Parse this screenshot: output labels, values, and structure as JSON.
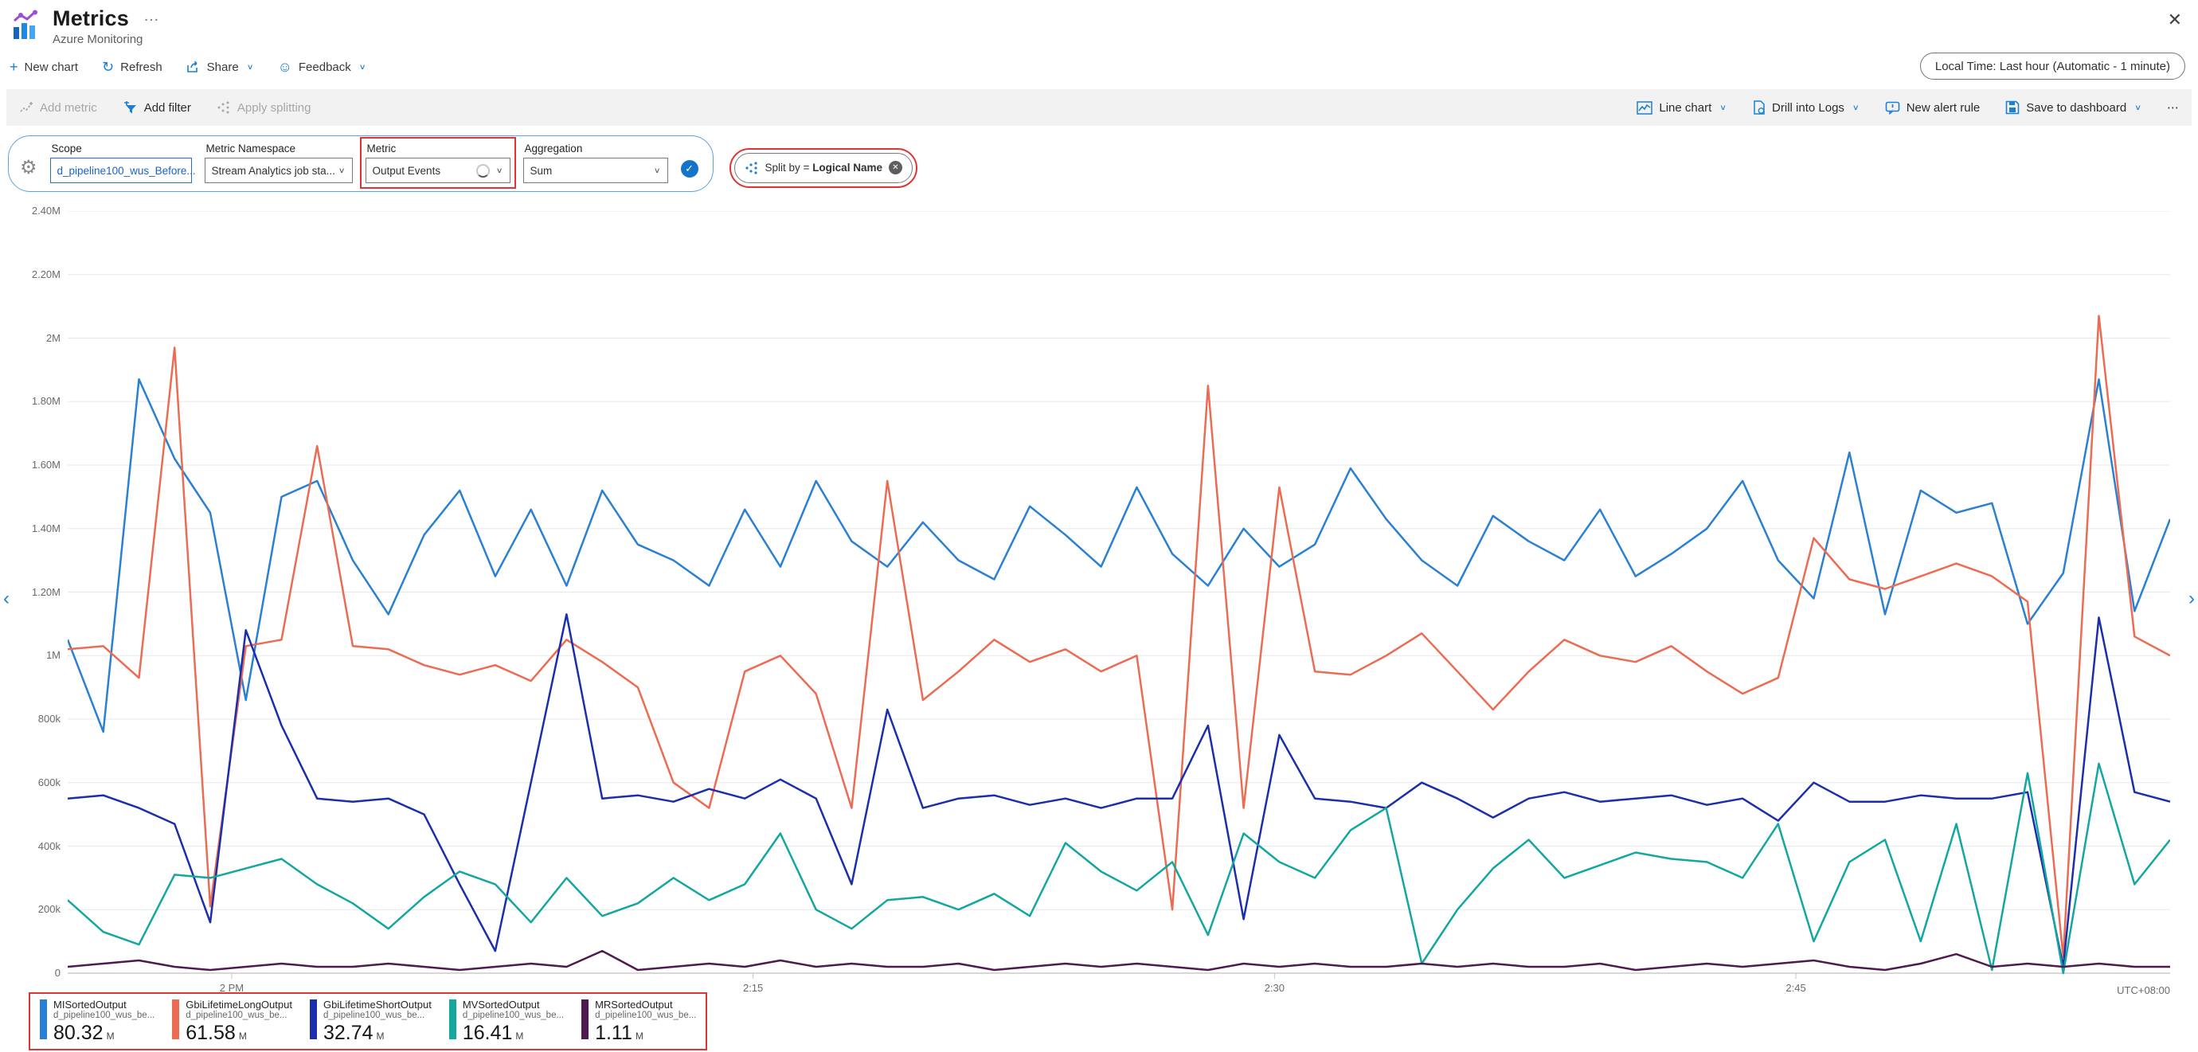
{
  "header": {
    "title": "Metrics",
    "subtitle": "Azure Monitoring",
    "ellipsis": "…",
    "close_glyph": "✕"
  },
  "toolbar": {
    "new_chart": "New chart",
    "refresh": "Refresh",
    "share": "Share",
    "feedback": "Feedback",
    "time_range": "Local Time: Last hour (Automatic - 1 minute)"
  },
  "commandbar": {
    "add_metric": "Add metric",
    "add_filter": "Add filter",
    "apply_splitting": "Apply splitting",
    "line_chart": "Line chart",
    "drill_into_logs": "Drill into Logs",
    "new_alert_rule": "New alert rule",
    "save_to_dashboard": "Save to dashboard",
    "more": "⋯"
  },
  "metric_config": {
    "scope_label": "Scope",
    "scope_value": "d_pipeline100_wus_Before...",
    "namespace_label": "Metric Namespace",
    "namespace_value": "Stream Analytics job sta...",
    "metric_label": "Metric",
    "metric_value": "Output Events",
    "aggregation_label": "Aggregation",
    "aggregation_value": "Sum",
    "split_by_prefix": "Split by =",
    "split_by_value": "Logical Name"
  },
  "icons": {
    "plus": "+",
    "refresh": "↻",
    "feedback": "☺",
    "chevron_down": "∨",
    "gear": "⚙",
    "check": "✓",
    "remove": "✕",
    "prev": "‹",
    "next": "›"
  },
  "chart_data": {
    "type": "line",
    "title": "",
    "xlabel": "",
    "ylabel": "",
    "time_span": "1:55 PM - 2:55 PM (1 minute granularity)",
    "grid": true,
    "legend_position": "bottom-left",
    "y_axis": {
      "min": 0,
      "max": 2400000,
      "ticks": [
        {
          "label": "2.40M",
          "value": 2.4
        },
        {
          "label": "2.20M",
          "value": 2.2
        },
        {
          "label": "2M",
          "value": 2.0
        },
        {
          "label": "1.80M",
          "value": 1.8
        },
        {
          "label": "1.60M",
          "value": 1.6
        },
        {
          "label": "1.40M",
          "value": 1.4
        },
        {
          "label": "1.20M",
          "value": 1.2
        },
        {
          "label": "1M",
          "value": 1.0
        },
        {
          "label": "800k",
          "value": 0.8
        },
        {
          "label": "600k",
          "value": 0.6
        },
        {
          "label": "400k",
          "value": 0.4
        },
        {
          "label": "200k",
          "value": 0.2
        },
        {
          "label": "0",
          "value": 0.0
        }
      ]
    },
    "x_axis": {
      "ticks": [
        {
          "label": "2 PM",
          "pos": 0.078
        },
        {
          "label": "2:15",
          "pos": 0.326
        },
        {
          "label": "2:30",
          "pos": 0.574
        },
        {
          "label": "2:45",
          "pos": 0.822
        }
      ],
      "note": "UTC+08:00"
    },
    "values_unit": "millions of events per minute",
    "series": [
      {
        "name": "MISortedOutput",
        "scope": "d_pipeline100_wus_be...",
        "total": "80.32",
        "unit": "M",
        "color": "#2a80d2",
        "values": [
          1.05,
          0.76,
          1.87,
          1.62,
          1.45,
          0.86,
          1.5,
          1.55,
          1.3,
          1.13,
          1.38,
          1.52,
          1.25,
          1.46,
          1.22,
          1.52,
          1.35,
          1.3,
          1.22,
          1.46,
          1.28,
          1.55,
          1.36,
          1.28,
          1.42,
          1.3,
          1.24,
          1.47,
          1.38,
          1.28,
          1.53,
          1.32,
          1.22,
          1.4,
          1.28,
          1.35,
          1.59,
          1.43,
          1.3,
          1.22,
          1.44,
          1.36,
          1.3,
          1.46,
          1.25,
          1.32,
          1.4,
          1.55,
          1.3,
          1.18,
          1.64,
          1.13,
          1.52,
          1.45,
          1.48,
          1.1,
          1.26,
          1.87,
          1.14,
          1.43
        ]
      },
      {
        "name": "GbiLifetimeLongOutput",
        "scope": "d_pipeline100_wus_be...",
        "total": "61.58",
        "unit": "M",
        "color": "#ec6c53",
        "values": [
          1.02,
          1.03,
          0.93,
          1.97,
          0.21,
          1.03,
          1.05,
          1.66,
          1.03,
          1.02,
          0.97,
          0.94,
          0.97,
          0.92,
          1.05,
          0.98,
          0.9,
          0.6,
          0.52,
          0.95,
          1.0,
          0.88,
          0.52,
          1.55,
          0.86,
          0.95,
          1.05,
          0.98,
          1.02,
          0.95,
          1.0,
          0.2,
          1.85,
          0.52,
          1.53,
          0.95,
          0.94,
          1.0,
          1.07,
          0.95,
          0.83,
          0.95,
          1.05,
          1.0,
          0.98,
          1.03,
          0.95,
          0.88,
          0.93,
          1.37,
          1.24,
          1.21,
          1.25,
          1.29,
          1.25,
          1.17,
          0.05,
          2.07,
          1.06,
          1.0
        ]
      },
      {
        "name": "GbiLifetimeShortOutput",
        "scope": "d_pipeline100_wus_be...",
        "total": "32.74",
        "unit": "M",
        "color": "#1b2eab",
        "values": [
          0.55,
          0.56,
          0.52,
          0.47,
          0.16,
          1.08,
          0.78,
          0.55,
          0.54,
          0.55,
          0.5,
          0.28,
          0.07,
          0.6,
          1.13,
          0.55,
          0.56,
          0.54,
          0.58,
          0.55,
          0.61,
          0.55,
          0.28,
          0.83,
          0.52,
          0.55,
          0.56,
          0.53,
          0.55,
          0.52,
          0.55,
          0.55,
          0.78,
          0.17,
          0.75,
          0.55,
          0.54,
          0.52,
          0.6,
          0.55,
          0.49,
          0.55,
          0.57,
          0.54,
          0.55,
          0.56,
          0.53,
          0.55,
          0.48,
          0.6,
          0.54,
          0.54,
          0.56,
          0.55,
          0.55,
          0.57,
          0.02,
          1.12,
          0.57,
          0.54
        ]
      },
      {
        "name": "MVSortedOutput",
        "scope": "d_pipeline100_wus_be...",
        "total": "16.41",
        "unit": "M",
        "color": "#14a7a0",
        "values": [
          0.23,
          0.13,
          0.09,
          0.31,
          0.3,
          0.33,
          0.36,
          0.28,
          0.22,
          0.14,
          0.24,
          0.32,
          0.28,
          0.16,
          0.3,
          0.18,
          0.22,
          0.3,
          0.23,
          0.28,
          0.44,
          0.2,
          0.14,
          0.23,
          0.24,
          0.2,
          0.25,
          0.18,
          0.41,
          0.32,
          0.26,
          0.35,
          0.12,
          0.44,
          0.35,
          0.3,
          0.45,
          0.52,
          0.03,
          0.2,
          0.33,
          0.42,
          0.3,
          0.34,
          0.38,
          0.36,
          0.35,
          0.3,
          0.47,
          0.1,
          0.35,
          0.42,
          0.1,
          0.47,
          0.01,
          0.63,
          0.0,
          0.66,
          0.28,
          0.42
        ]
      },
      {
        "name": "MRSortedOutput",
        "scope": "d_pipeline100_wus_be...",
        "total": "1.11",
        "unit": "M",
        "color": "#4e1a4f",
        "values": [
          0.02,
          0.03,
          0.04,
          0.02,
          0.01,
          0.02,
          0.03,
          0.02,
          0.02,
          0.03,
          0.02,
          0.01,
          0.02,
          0.03,
          0.02,
          0.07,
          0.01,
          0.02,
          0.03,
          0.02,
          0.04,
          0.02,
          0.03,
          0.02,
          0.02,
          0.03,
          0.01,
          0.02,
          0.03,
          0.02,
          0.03,
          0.02,
          0.01,
          0.03,
          0.02,
          0.03,
          0.02,
          0.02,
          0.03,
          0.02,
          0.03,
          0.02,
          0.02,
          0.03,
          0.01,
          0.02,
          0.03,
          0.02,
          0.03,
          0.04,
          0.02,
          0.01,
          0.03,
          0.06,
          0.02,
          0.03,
          0.02,
          0.03,
          0.02,
          0.02
        ]
      }
    ]
  }
}
